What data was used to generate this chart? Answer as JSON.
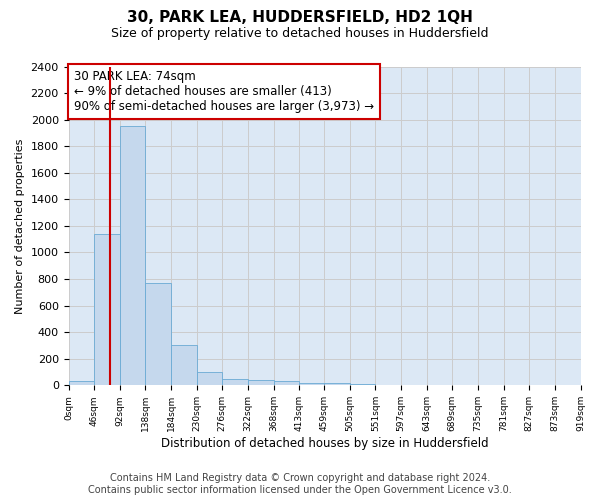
{
  "title1": "30, PARK LEA, HUDDERSFIELD, HD2 1QH",
  "title2": "Size of property relative to detached houses in Huddersfield",
  "xlabel": "Distribution of detached houses by size in Huddersfield",
  "ylabel": "Number of detached properties",
  "annotation_line1": "30 PARK LEA: 74sqm",
  "annotation_line2": "← 9% of detached houses are smaller (413)",
  "annotation_line3": "90% of semi-detached houses are larger (3,973) →",
  "property_size_sqm": 74,
  "bin_edges": [
    0,
    46,
    92,
    138,
    184,
    230,
    276,
    322,
    368,
    413,
    459,
    505,
    551,
    597,
    643,
    689,
    735,
    781,
    827,
    873,
    919
  ],
  "bar_heights": [
    35,
    1140,
    1950,
    770,
    300,
    100,
    50,
    40,
    35,
    20,
    15,
    10,
    5,
    3,
    2,
    2,
    1,
    1,
    1,
    1
  ],
  "bar_color": "#c5d8ed",
  "bar_edgecolor": "#6aaad4",
  "vline_x": 74,
  "vline_color": "#cc0000",
  "ylim": [
    0,
    2400
  ],
  "yticks": [
    0,
    200,
    400,
    600,
    800,
    1000,
    1200,
    1400,
    1600,
    1800,
    2000,
    2200,
    2400
  ],
  "grid_color": "#cccccc",
  "bg_color": "#dce8f5",
  "footer_line1": "Contains HM Land Registry data © Crown copyright and database right 2024.",
  "footer_line2": "Contains public sector information licensed under the Open Government Licence v3.0.",
  "title1_fontsize": 11,
  "title2_fontsize": 9,
  "annotation_fontsize": 8.5,
  "footer_fontsize": 7,
  "ylabel_fontsize": 8,
  "xlabel_fontsize": 8.5,
  "ytick_fontsize": 8,
  "xtick_fontsize": 6.5
}
